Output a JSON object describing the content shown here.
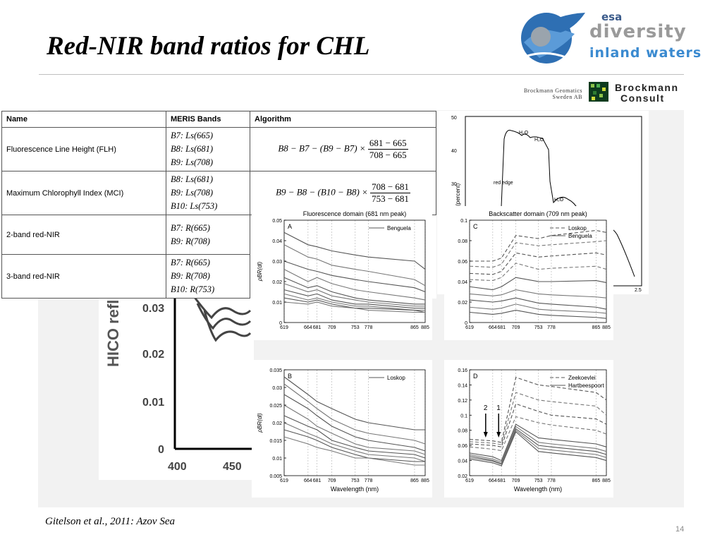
{
  "slide": {
    "title": "Red-NIR band ratios for CHL",
    "caption": "Gitelson et al., 2011: Azov Sea",
    "page_number": "14"
  },
  "logos": {
    "esa": "esa",
    "diversity_line1": "diversity",
    "diversity_line2": "inland waters",
    "brockmann_geomatics_line1": "Brockmann Geomatics",
    "brockmann_geomatics_line2": "Sweden AB",
    "brockmann_consult_line1": "Brockmann",
    "brockmann_consult_line2": "Consult"
  },
  "table": {
    "headers": [
      "Name",
      "MERIS Bands",
      "Algorithm"
    ],
    "rows": [
      {
        "name": "Fluorescence Line Height (FLH)",
        "bands": [
          "B7: Ls(665)",
          "B8: Ls(681)",
          "B9: Ls(708)"
        ],
        "algorithm_prefix": "B8 − B7 − (B9 − B7) ×",
        "algorithm_num": "681 − 665",
        "algorithm_den": "708 − 665"
      },
      {
        "name": "Maximum Chlorophyll Index (MCI)",
        "bands": [
          "B8: Ls(681)",
          "B9: Ls(708)",
          "B10: Ls(753)"
        ],
        "algorithm_prefix": "B9 − B8 − (B10 − B8) ×",
        "algorithm_num": "708 − 681",
        "algorithm_den": "753 − 681"
      },
      {
        "name": "2-band red-NIR",
        "bands": [
          "B7: R(665)",
          "B9: R(708)"
        ]
      },
      {
        "name": "3-band red-NIR",
        "bands": [
          "B7: R(665)",
          "B9: R(708)",
          "B10: R(753)"
        ]
      }
    ]
  },
  "background_plots": {
    "hico": {
      "ylabel": "HICO refl",
      "yticks": [
        "0.03",
        "0.02",
        "0.01",
        "0"
      ],
      "xticks": [
        "400",
        "450"
      ]
    },
    "spectrum": {
      "ylabel": "nce (percent)",
      "yticks": [
        "50",
        "40",
        "30"
      ],
      "xticks": [
        "2.5"
      ],
      "labels": [
        "H₂O",
        "H₂O",
        "red edge",
        "H₂O"
      ]
    }
  },
  "chart_data": [
    {
      "type": "line",
      "panel": "A",
      "title": "Fluorescence domain (681 nm peak)",
      "ylabel": "ρBR(dl)",
      "legend": [
        "Benguela"
      ],
      "x": [
        619,
        664,
        681,
        709,
        753,
        778,
        865,
        885
      ],
      "xticks": [
        "619",
        "664",
        "681",
        "709",
        "753",
        "778",
        "865",
        "885"
      ],
      "ylim": [
        0,
        0.05
      ],
      "yticks": [
        "0",
        "0.01",
        "0.02",
        "0.03",
        "0.04",
        "0.05"
      ],
      "series": [
        {
          "values": [
            0.044,
            0.038,
            0.037,
            0.035,
            0.033,
            0.032,
            0.03,
            0.026
          ]
        },
        {
          "values": [
            0.038,
            0.032,
            0.031,
            0.028,
            0.026,
            0.025,
            0.021,
            0.018
          ]
        },
        {
          "values": [
            0.03,
            0.026,
            0.025,
            0.023,
            0.021,
            0.02,
            0.017,
            0.015
          ]
        },
        {
          "values": [
            0.026,
            0.02,
            0.022,
            0.019,
            0.016,
            0.015,
            0.012,
            0.011
          ]
        },
        {
          "values": [
            0.022,
            0.017,
            0.018,
            0.015,
            0.012,
            0.011,
            0.009,
            0.009
          ]
        },
        {
          "values": [
            0.019,
            0.015,
            0.016,
            0.013,
            0.011,
            0.01,
            0.008,
            0.008
          ]
        },
        {
          "values": [
            0.016,
            0.013,
            0.014,
            0.011,
            0.009,
            0.009,
            0.007,
            0.007
          ]
        },
        {
          "values": [
            0.014,
            0.011,
            0.012,
            0.01,
            0.008,
            0.008,
            0.006,
            0.006
          ]
        },
        {
          "values": [
            0.012,
            0.01,
            0.011,
            0.009,
            0.007,
            0.007,
            0.006,
            0.005
          ]
        },
        {
          "values": [
            0.01,
            0.009,
            0.01,
            0.008,
            0.007,
            0.006,
            0.005,
            0.005
          ]
        }
      ]
    },
    {
      "type": "line",
      "panel": "C",
      "title": "Backscatter domain (709 nm peak)",
      "legend": [
        "Loskop",
        "Benguela"
      ],
      "x": [
        619,
        664,
        681,
        709,
        753,
        778,
        865,
        885
      ],
      "xticks": [
        "619",
        "664",
        "681",
        "709",
        "753",
        "778",
        "865",
        "885"
      ],
      "ylim": [
        0,
        0.1
      ],
      "yticks": [
        "0",
        "0.02",
        "0.04",
        "0.06",
        "0.08",
        "0.1"
      ],
      "series": [
        {
          "values": [
            0.06,
            0.06,
            0.063,
            0.085,
            0.082,
            0.085,
            0.09,
            0.088
          ]
        },
        {
          "values": [
            0.055,
            0.054,
            0.057,
            0.078,
            0.075,
            0.076,
            0.079,
            0.08
          ]
        },
        {
          "values": [
            0.048,
            0.047,
            0.05,
            0.068,
            0.064,
            0.065,
            0.068,
            0.066
          ]
        },
        {
          "values": [
            0.042,
            0.041,
            0.044,
            0.058,
            0.052,
            0.053,
            0.055,
            0.052
          ]
        },
        {
          "values": [
            0.035,
            0.032,
            0.035,
            0.044,
            0.04,
            0.04,
            0.041,
            0.039
          ]
        },
        {
          "values": [
            0.028,
            0.026,
            0.027,
            0.032,
            0.028,
            0.027,
            0.025,
            0.024
          ]
        },
        {
          "values": [
            0.022,
            0.02,
            0.021,
            0.024,
            0.019,
            0.018,
            0.015,
            0.013
          ]
        },
        {
          "values": [
            0.015,
            0.013,
            0.014,
            0.018,
            0.013,
            0.012,
            0.01,
            0.009
          ]
        },
        {
          "values": [
            0.01,
            0.008,
            0.009,
            0.012,
            0.008,
            0.007,
            0.005,
            0.004
          ]
        }
      ]
    },
    {
      "type": "line",
      "panel": "B",
      "xlabel": "Wavelength (nm)",
      "ylabel": "ρBR(dl)",
      "legend": [
        "Loskop"
      ],
      "x": [
        619,
        664,
        681,
        709,
        753,
        778,
        865,
        885
      ],
      "xticks": [
        "619",
        "664",
        "681",
        "709",
        "753",
        "778",
        "865",
        "885"
      ],
      "ylim": [
        0.005,
        0.035
      ],
      "yticks": [
        "0.005",
        "0.01",
        "0.015",
        "0.02",
        "0.025",
        "0.03",
        "0.035"
      ],
      "series": [
        {
          "values": [
            0.033,
            0.028,
            0.026,
            0.024,
            0.021,
            0.02,
            0.018,
            0.018
          ]
        },
        {
          "values": [
            0.031,
            0.026,
            0.024,
            0.021,
            0.018,
            0.017,
            0.015,
            0.014
          ]
        },
        {
          "values": [
            0.028,
            0.024,
            0.022,
            0.019,
            0.016,
            0.015,
            0.013,
            0.012
          ]
        },
        {
          "values": [
            0.025,
            0.021,
            0.019,
            0.017,
            0.014,
            0.013,
            0.012,
            0.011
          ]
        },
        {
          "values": [
            0.022,
            0.019,
            0.018,
            0.015,
            0.013,
            0.012,
            0.011,
            0.01
          ]
        },
        {
          "values": [
            0.02,
            0.017,
            0.016,
            0.014,
            0.012,
            0.011,
            0.01,
            0.009
          ]
        },
        {
          "values": [
            0.018,
            0.016,
            0.015,
            0.013,
            0.011,
            0.01,
            0.009,
            0.009
          ]
        },
        {
          "values": [
            0.016,
            0.014,
            0.013,
            0.012,
            0.01,
            0.01,
            0.008,
            0.008
          ]
        }
      ]
    },
    {
      "type": "line",
      "panel": "D",
      "xlabel": "Wavelength (nm)",
      "legend": [
        "Zeekoevlei",
        "Hartbeespoort"
      ],
      "annotations": [
        "2",
        "1"
      ],
      "x": [
        619,
        664,
        681,
        709,
        753,
        778,
        865,
        885
      ],
      "xticks": [
        "619",
        "664",
        "681",
        "709",
        "753",
        "778",
        "865",
        "885"
      ],
      "ylim": [
        0.02,
        0.16
      ],
      "yticks": [
        "0.02",
        "0.04",
        "0.06",
        "0.08",
        "0.1",
        "0.12",
        "0.14",
        "0.16"
      ],
      "series": [
        {
          "values": [
            0.068,
            0.066,
            0.064,
            0.15,
            0.14,
            0.138,
            0.13,
            0.12
          ]
        },
        {
          "values": [
            0.065,
            0.063,
            0.061,
            0.13,
            0.12,
            0.118,
            0.112,
            0.1
          ]
        },
        {
          "values": [
            0.062,
            0.06,
            0.058,
            0.115,
            0.105,
            0.1,
            0.095,
            0.088
          ]
        },
        {
          "values": [
            0.058,
            0.055,
            0.053,
            0.098,
            0.09,
            0.087,
            0.08,
            0.075
          ]
        },
        {
          "values": [
            0.05,
            0.045,
            0.04,
            0.088,
            0.07,
            0.068,
            0.062,
            0.058
          ]
        },
        {
          "values": [
            0.048,
            0.042,
            0.038,
            0.085,
            0.064,
            0.062,
            0.056,
            0.052
          ]
        },
        {
          "values": [
            0.046,
            0.04,
            0.036,
            0.082,
            0.06,
            0.058,
            0.052,
            0.048
          ]
        },
        {
          "values": [
            0.044,
            0.039,
            0.035,
            0.08,
            0.056,
            0.054,
            0.048,
            0.044
          ]
        },
        {
          "values": [
            0.042,
            0.037,
            0.033,
            0.078,
            0.052,
            0.05,
            0.044,
            0.04
          ]
        }
      ]
    }
  ]
}
